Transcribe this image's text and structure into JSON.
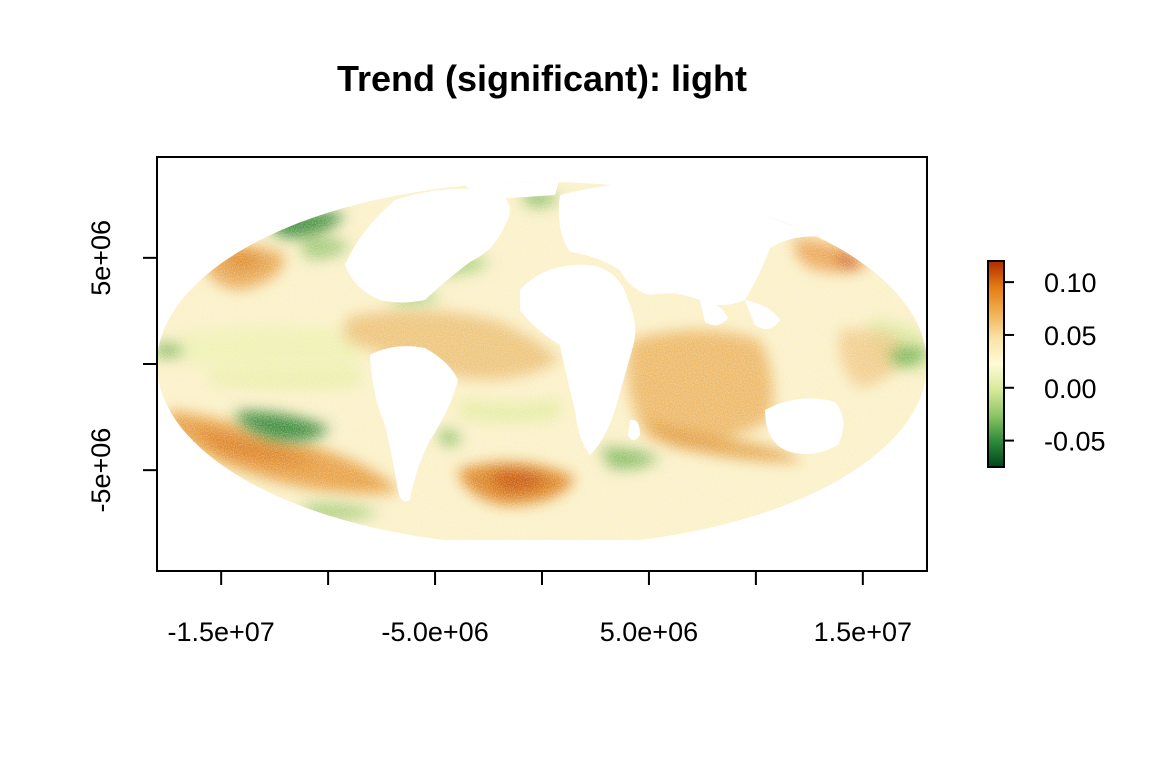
{
  "title": "Trend (significant): light",
  "chart_data": {
    "type": "heatmap",
    "projection": "Mollweide (equal-area world map)",
    "title": "Trend (significant): light",
    "x_ticks": [
      {
        "value": -15000000,
        "label": "-1.5e+07"
      },
      {
        "value": -10000000,
        "label": ""
      },
      {
        "value": -5000000,
        "label": "-5.0e+06"
      },
      {
        "value": 0,
        "label": ""
      },
      {
        "value": 5000000,
        "label": "5.0e+06"
      },
      {
        "value": 10000000,
        "label": ""
      },
      {
        "value": 15000000,
        "label": "1.5e+07"
      }
    ],
    "y_ticks": [
      {
        "value": 5000000,
        "label": "5e+06"
      },
      {
        "value": 0,
        "label": ""
      },
      {
        "value": -5000000,
        "label": "-5e+06"
      }
    ],
    "xlim": [
      -18000000,
      18000000
    ],
    "ylim": [
      -9750000,
      9750000
    ],
    "legend": {
      "placement": "right",
      "range": [
        -0.075,
        0.12
      ],
      "ticks": [
        {
          "value": 0.1,
          "label": "0.10"
        },
        {
          "value": 0.05,
          "label": "0.05"
        },
        {
          "value": 0.0,
          "label": "0.00"
        },
        {
          "value": -0.05,
          "label": "-0.05"
        }
      ],
      "colors": [
        "#00441b",
        "#2f8a3a",
        "#8cc566",
        "#d8e99a",
        "#fffbd6",
        "#fae3a6",
        "#f0b050",
        "#e37b15",
        "#b02a00"
      ]
    },
    "grid": false,
    "regions": [
      {
        "name": "north-atlantic-orange-belt",
        "value": 0.06
      },
      {
        "name": "south-atlantic-orange-patch",
        "value": 0.1
      },
      {
        "name": "south-pacific-orange-band",
        "value": 0.08
      },
      {
        "name": "indian-ocean-orange",
        "value": 0.06
      },
      {
        "name": "north-pacific-west-orange",
        "value": 0.07
      },
      {
        "name": "north-pacific-east-orange",
        "value": 0.06
      },
      {
        "name": "south-pacific-green-patch",
        "value": -0.06
      },
      {
        "name": "north-pacific-green-patch",
        "value": -0.06
      },
      {
        "name": "southern-ocean-green",
        "value": -0.03
      }
    ]
  }
}
